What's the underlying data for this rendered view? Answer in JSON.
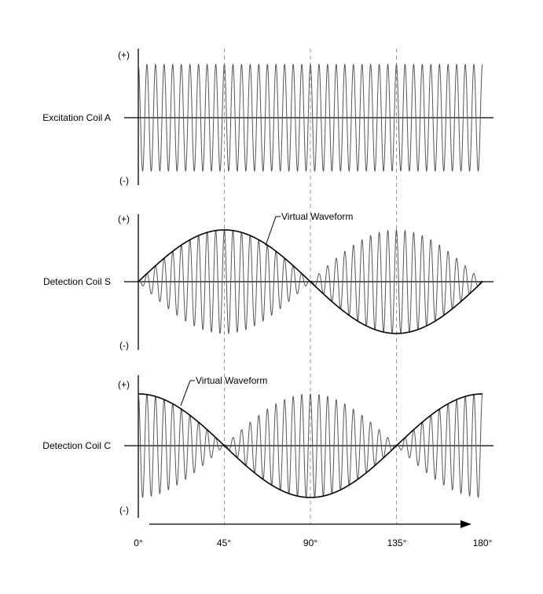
{
  "panels": [
    {
      "label": "Excitation Coil A",
      "plus": "(+)",
      "minus": "(-)"
    },
    {
      "label": "Detection Coil S",
      "plus": "(+)",
      "minus": "(-)",
      "callout": "Virtual Waveform"
    },
    {
      "label": "Detection Coil C",
      "plus": "(+)",
      "minus": "(-)",
      "callout": "Virtual Waveform"
    }
  ],
  "angle_ticks": [
    "0°",
    "45°",
    "90°",
    "135°",
    "180°"
  ],
  "angle_values": [
    0,
    45,
    90,
    135,
    180
  ],
  "signal": {
    "carrier_cycles": 40,
    "excitation": "constant amplitude carrier",
    "coil_s_envelope": "sin(2θ)",
    "coil_c_envelope": "cos(2θ)"
  },
  "colors": {
    "ink": "#000000",
    "carrier": "#555555",
    "guide": "#9a9a9a"
  }
}
